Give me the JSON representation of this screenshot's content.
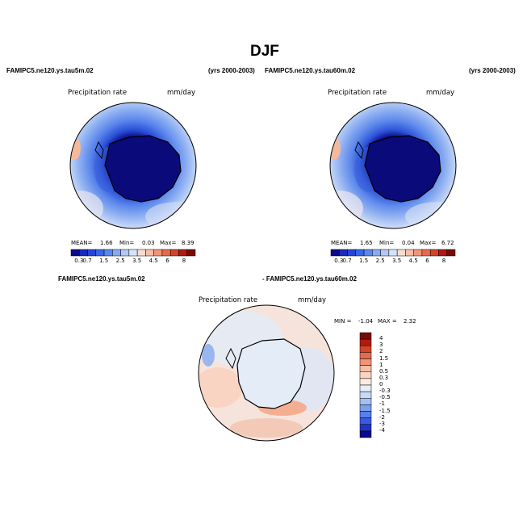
{
  "title": "DJF",
  "panels": [
    {
      "case": "FAMIPC5.ne120.ys.tau5m.02",
      "years": "(yrs 2000-2003)",
      "variable": "Precipitation rate",
      "units": "mm/day",
      "stats": {
        "mean_label": "MEAN=",
        "mean": "1.66",
        "min_label": "Min=",
        "min": "0.03",
        "max_label": "Max=",
        "max": "8.39"
      }
    },
    {
      "case": "FAMIPC5.ne120.ys.tau60m.02",
      "years": "(yrs 2000-2003)",
      "variable": "Precipitation rate",
      "units": "mm/day",
      "stats": {
        "mean_label": "MEAN=",
        "mean": "1.65",
        "min_label": "Min=",
        "min": "0.04",
        "max_label": "Max=",
        "max": "6.72"
      }
    }
  ],
  "diff": {
    "case_a": "FAMIPC5.ne120.ys.tau5m.02",
    "case_b": "- FAMIPC5.ne120.ys.tau60m.02",
    "variable": "Precipitation rate",
    "units": "mm/day",
    "min_label": "MIN =",
    "min": "-1.04",
    "max_label": "MAX =",
    "max": "2.32"
  },
  "colorbar_levels": [
    "0.3",
    "0.7",
    "1",
    "1.5",
    "2",
    "2.5",
    "3",
    "3.5",
    "4",
    "4.5",
    "5",
    "6",
    "7",
    "8"
  ],
  "colorbar_visible_labels": [
    "0.3",
    "0.7",
    "1.5",
    "2.5",
    "3.5",
    "4.5",
    "6",
    "8"
  ],
  "colorbar_colors": [
    "#0a0a8c",
    "#1a2ab8",
    "#2545d6",
    "#3a66e8",
    "#5a88f0",
    "#86aaf4",
    "#b0c8f6",
    "#d6e2f7",
    "#f7ddcf",
    "#f7bda5",
    "#f29478",
    "#e86a4c",
    "#d4442a",
    "#b01a10",
    "#7a0a08"
  ],
  "diff_levels": [
    "4",
    "3",
    "2",
    "1.5",
    "1",
    "0.5",
    "0.3",
    "0",
    "-0.3",
    "-0.5",
    "-1",
    "-1.5",
    "-2",
    "-3",
    "-4"
  ],
  "diff_colors": [
    "#7a0a08",
    "#b01a10",
    "#d4442a",
    "#e86a4c",
    "#f29478",
    "#f7bda5",
    "#f9d6c4",
    "#fbece2",
    "#e6eef9",
    "#c8d8f5",
    "#a4bff2",
    "#7e9fee",
    "#5a7fea",
    "#3a5ae0",
    "#1f35c8",
    "#0a0a8c"
  ]
}
